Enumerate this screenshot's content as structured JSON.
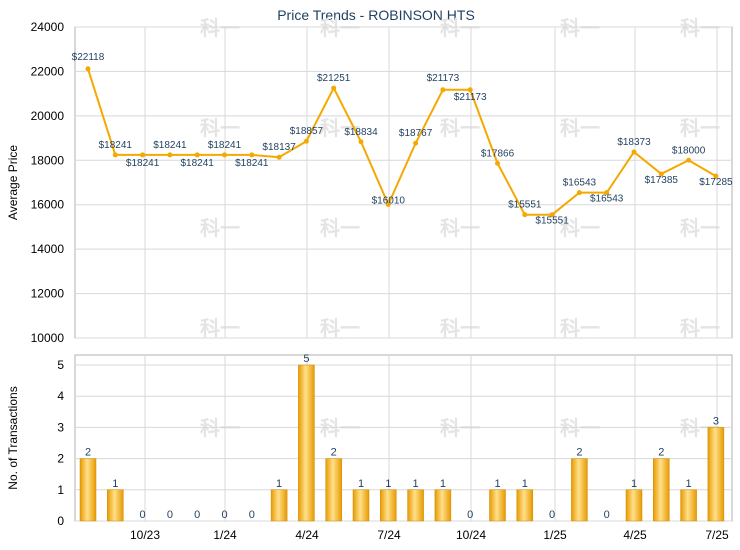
{
  "chart_data": [
    {
      "type": "line",
      "title": "Price Trends - ROBINSON HTS",
      "ylabel": "Average Price",
      "ylim": [
        10000,
        24000
      ],
      "yticks": [
        10000,
        12000,
        14000,
        16000,
        18000,
        20000,
        22000,
        24000
      ],
      "grid": true,
      "color": "#f5a800",
      "x_ticks": [
        "10/23",
        "1/24",
        "4/24",
        "7/24",
        "10/24",
        "1/25",
        "4/25",
        "7/25"
      ],
      "values": [
        22118,
        18241,
        18241,
        18241,
        18241,
        18241,
        18241,
        18137,
        18857,
        21251,
        18834,
        16010,
        18767,
        21173,
        21173,
        17866,
        15551,
        15551,
        16543,
        16543,
        18373,
        17385,
        18000,
        17285
      ],
      "labels": [
        "$22118",
        "$18241",
        "$18241",
        "$18241",
        "$18241",
        "$18241",
        "$18241",
        "$18137",
        "$18857",
        "$21251",
        "$18834",
        "$16010",
        "$18767",
        "$21173",
        "$21173",
        "$17866",
        "$15551",
        "$15551",
        "$16543",
        "$16543",
        "$18373",
        "$17385",
        "$18000",
        "$17285"
      ]
    },
    {
      "type": "bar",
      "ylabel": "No. of Transactions",
      "ylim": [
        0,
        5
      ],
      "yticks": [
        0,
        1,
        2,
        3,
        4,
        5
      ],
      "grid": true,
      "color": "#f5a800",
      "x_ticks": [
        "10/23",
        "1/24",
        "4/24",
        "7/24",
        "10/24",
        "1/25",
        "4/25",
        "7/25"
      ],
      "values": [
        2,
        1,
        0,
        0,
        0,
        0,
        0,
        1,
        5,
        2,
        1,
        1,
        1,
        1,
        0,
        1,
        1,
        0,
        2,
        0,
        1,
        2,
        1,
        3
      ]
    }
  ]
}
